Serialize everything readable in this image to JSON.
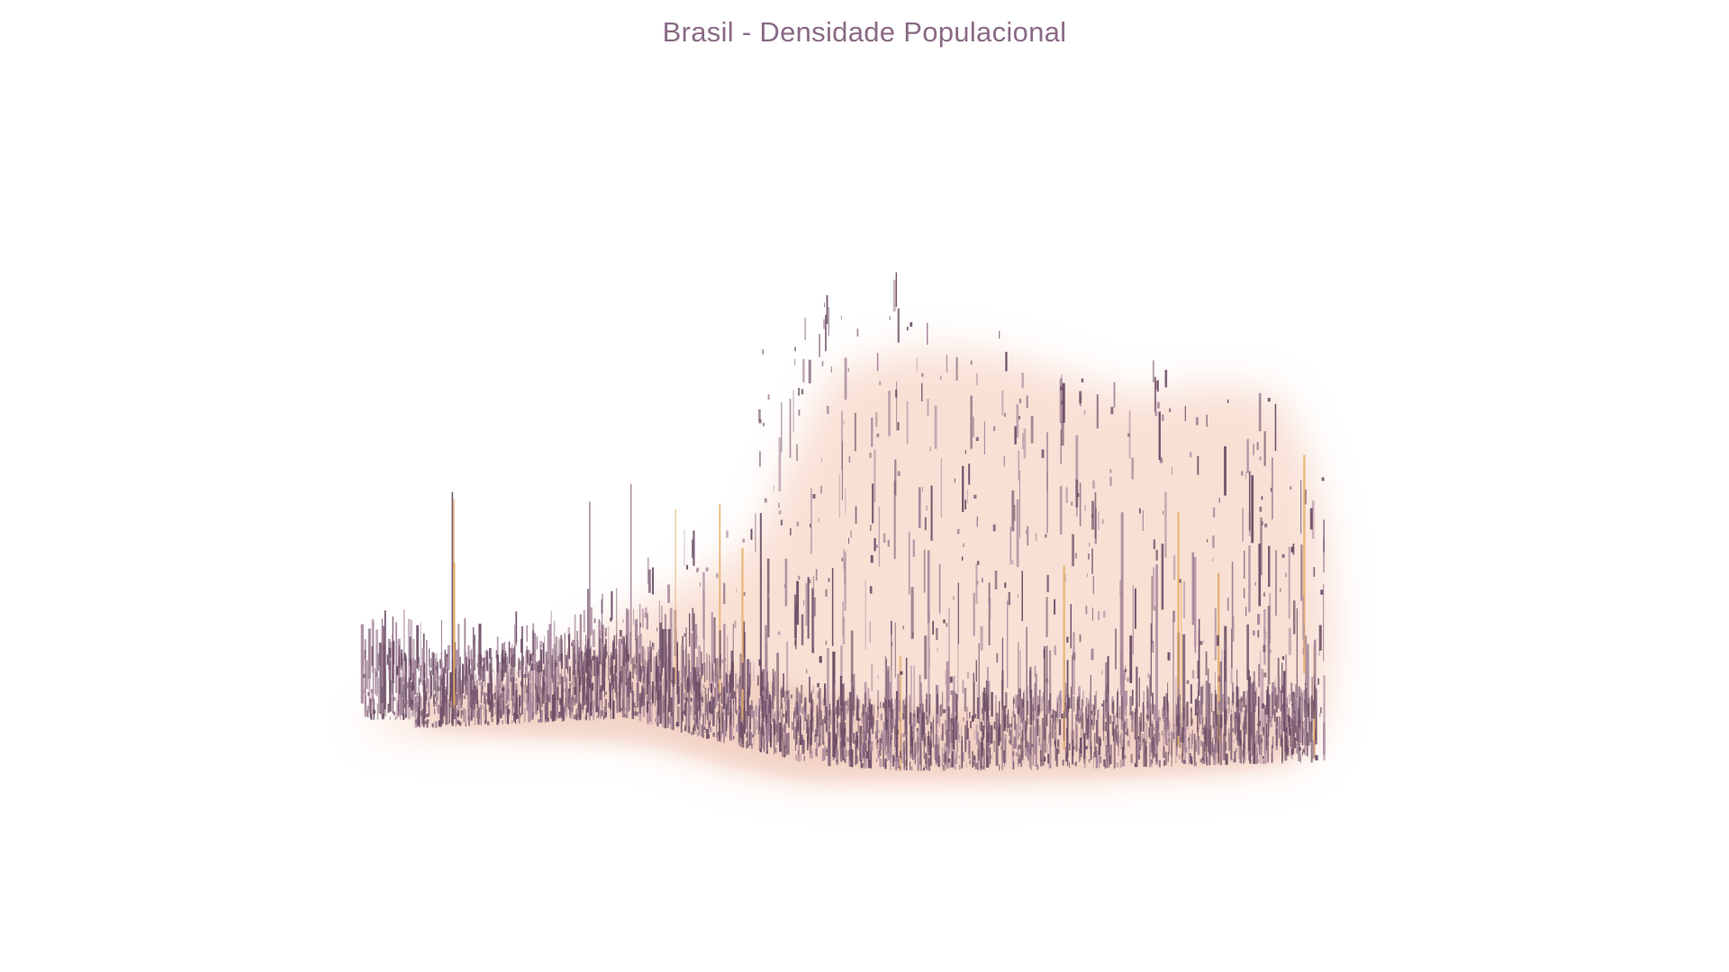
{
  "title": "Brasil - Densidade Populacional",
  "colors": {
    "title": "#8a6a86",
    "spike_base": "#6e4f67",
    "spike_light": "#a9889c",
    "spike_highlight": "#e3a95c",
    "glow": "#f4c7b3",
    "background": "#ffffff"
  },
  "map": {
    "region": "Brasil",
    "view": "3D oblique relief of population density",
    "palette": "purple-to-orange (low to high)"
  }
}
